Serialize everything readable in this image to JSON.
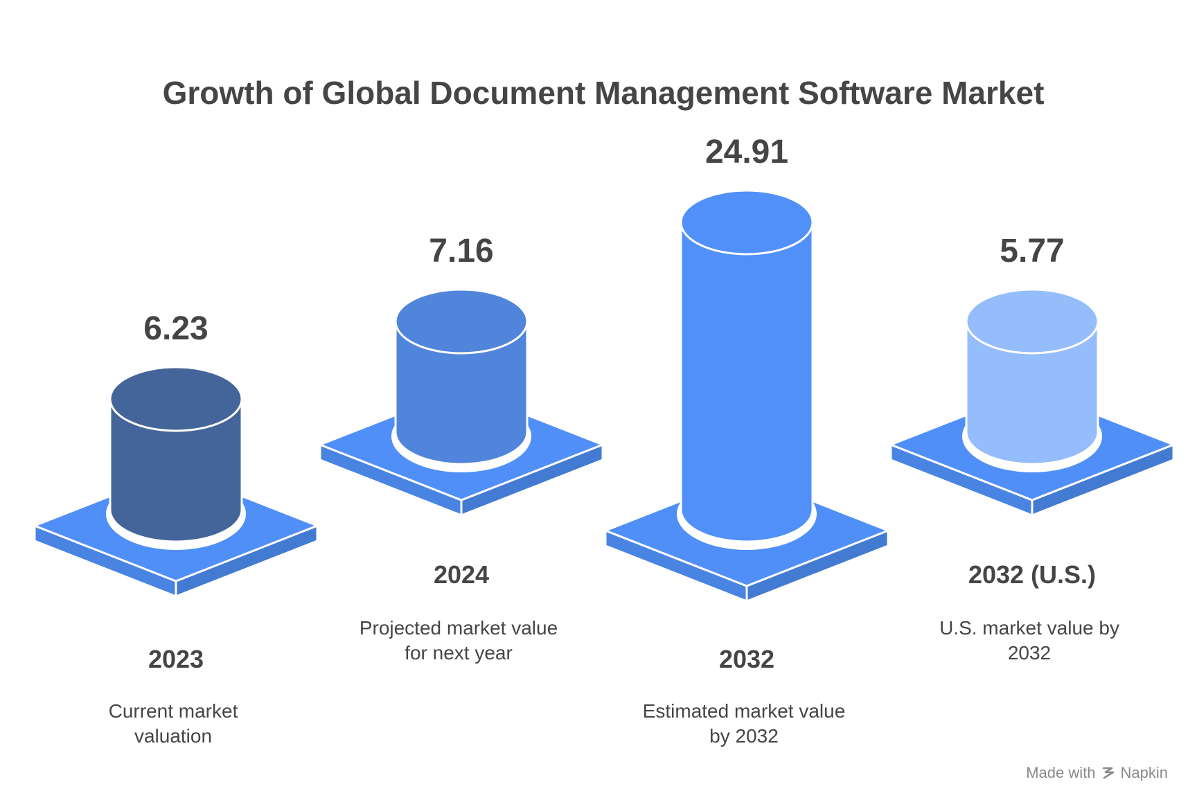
{
  "chart_data": {
    "type": "bar",
    "style": "3d-cylinder-on-platform",
    "title": "Growth of Global Document Management Software Market",
    "categories": [
      "2023",
      "2024",
      "2032",
      "2032 (U.S.)"
    ],
    "values": [
      6.23,
      7.16,
      24.91,
      5.77
    ],
    "value_labels": [
      "6.23",
      "7.16",
      "24.91",
      "5.77"
    ],
    "descriptions": [
      [
        "Current market",
        "valuation"
      ],
      [
        "Projected market value",
        "for next year"
      ],
      [
        "Estimated market value",
        "by 2032"
      ],
      [
        "U.S. market value by",
        "2032"
      ]
    ],
    "colors": [
      "#44659A",
      "#5185DB",
      "#5190F8",
      "#95BCFB"
    ],
    "platform_color": "#4F8FF7",
    "xlabel": "",
    "ylabel": ""
  },
  "footer": {
    "made_with": "Made with",
    "brand": "Napkin"
  }
}
